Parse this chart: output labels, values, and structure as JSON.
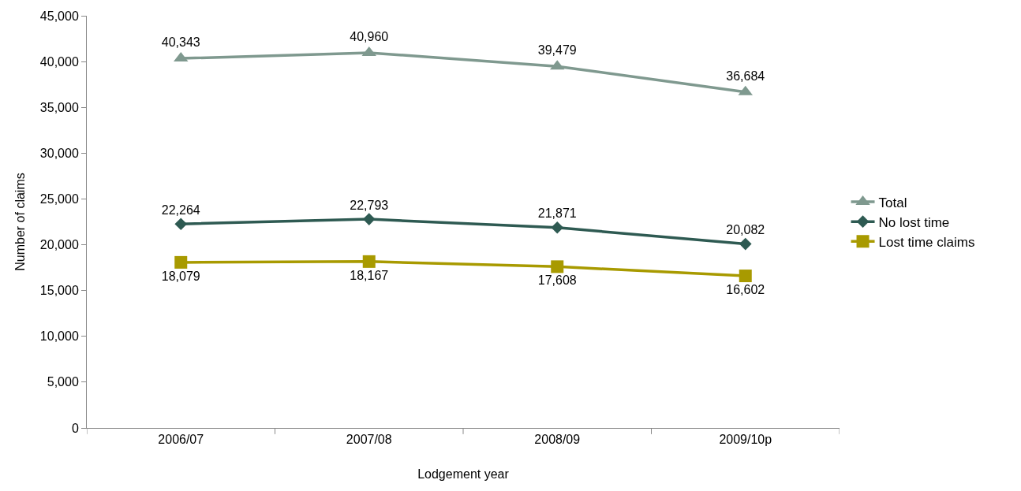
{
  "chart_data": {
    "type": "line",
    "xlabel": "Lodgement year",
    "ylabel": "Number of claims",
    "categories": [
      "2006/07",
      "2007/08",
      "2008/09",
      "2009/10p"
    ],
    "series": [
      {
        "name": "Total",
        "color": "#7f998f",
        "marker": "triangle",
        "values": [
          40343,
          40960,
          39479,
          36684
        ],
        "value_labels": [
          "40,343",
          "40,960",
          "39,479",
          "36,684"
        ]
      },
      {
        "name": "No lost time",
        "color": "#2e5a52",
        "marker": "diamond",
        "values": [
          22264,
          22793,
          21871,
          20082
        ],
        "value_labels": [
          "22,264",
          "22,793",
          "21,871",
          "20,082"
        ]
      },
      {
        "name": "Lost time claims",
        "color": "#a89a00",
        "marker": "square",
        "values": [
          18079,
          18167,
          17608,
          16602
        ],
        "value_labels": [
          "18,079",
          "18,167",
          "17,608",
          "16,602"
        ]
      }
    ],
    "ylim": [
      0,
      45000
    ],
    "yticks": [
      {
        "value": 0,
        "label": "0"
      },
      {
        "value": 5000,
        "label": "5,000"
      },
      {
        "value": 10000,
        "label": "10,000"
      },
      {
        "value": 15000,
        "label": "15,000"
      },
      {
        "value": 20000,
        "label": "20,000"
      },
      {
        "value": 25000,
        "label": "25,000"
      },
      {
        "value": 30000,
        "label": "30,000"
      },
      {
        "value": 35000,
        "label": "35,000"
      },
      {
        "value": 40000,
        "label": "40,000"
      },
      {
        "value": 45000,
        "label": "45,000"
      }
    ],
    "legend": "right",
    "line_style": "solid"
  }
}
